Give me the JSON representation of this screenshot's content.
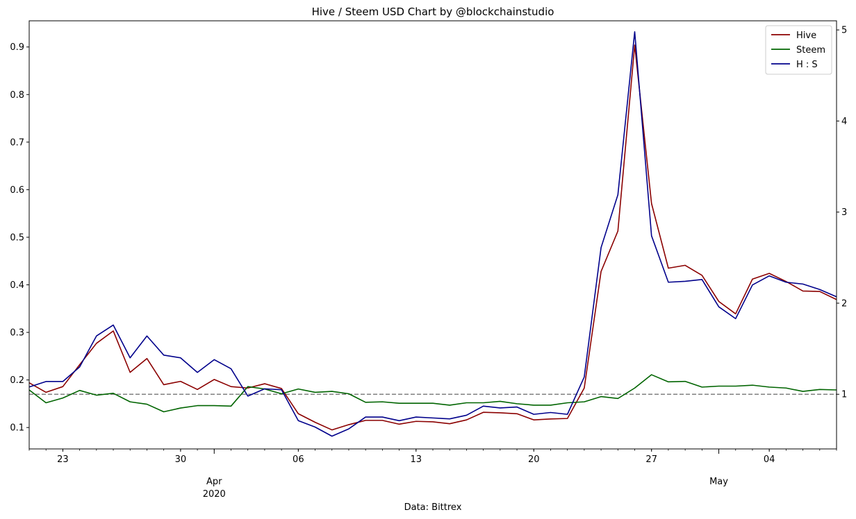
{
  "chart_data": {
    "type": "line",
    "title": "Hive / Steem USD Chart by @blockchainstudio",
    "xlabel": "Data: Bittrex",
    "x_major_labels": [
      {
        "date": "2020-04-01",
        "label": "Apr",
        "sublabel": "2020"
      },
      {
        "date": "2020-05-01",
        "label": "May",
        "sublabel": ""
      }
    ],
    "x_minor_ticks": [
      {
        "date": "2020-03-23",
        "label": "23"
      },
      {
        "date": "2020-03-30",
        "label": "30"
      },
      {
        "date": "2020-04-06",
        "label": "06"
      },
      {
        "date": "2020-04-13",
        "label": "13"
      },
      {
        "date": "2020-04-20",
        "label": "20"
      },
      {
        "date": "2020-04-27",
        "label": "27"
      },
      {
        "date": "2020-05-04",
        "label": "04"
      }
    ],
    "xlim": [
      "2020-03-21",
      "2020-05-08"
    ],
    "ylim_left": [
      0.055,
      0.955
    ],
    "yticks_left": [
      "0.1",
      "0.2",
      "0.3",
      "0.4",
      "0.5",
      "0.6",
      "0.7",
      "0.8",
      "0.9"
    ],
    "ylim_right": [
      0.4,
      5.1
    ],
    "yticks_right": [
      "1",
      "2",
      "3",
      "4",
      "5"
    ],
    "reference_line": {
      "axis": "right",
      "value": 1,
      "style": "dashed",
      "color": "#808080"
    },
    "legend": {
      "position": "top-right"
    },
    "dates": [
      "2020-03-21",
      "2020-03-22",
      "2020-03-23",
      "2020-03-24",
      "2020-03-25",
      "2020-03-26",
      "2020-03-27",
      "2020-03-28",
      "2020-03-29",
      "2020-03-30",
      "2020-03-31",
      "2020-04-01",
      "2020-04-02",
      "2020-04-03",
      "2020-04-04",
      "2020-04-05",
      "2020-04-06",
      "2020-04-07",
      "2020-04-08",
      "2020-04-09",
      "2020-04-10",
      "2020-04-11",
      "2020-04-12",
      "2020-04-13",
      "2020-04-14",
      "2020-04-15",
      "2020-04-16",
      "2020-04-17",
      "2020-04-18",
      "2020-04-19",
      "2020-04-20",
      "2020-04-21",
      "2020-04-22",
      "2020-04-23",
      "2020-04-24",
      "2020-04-25",
      "2020-04-26",
      "2020-04-27",
      "2020-04-28",
      "2020-04-29",
      "2020-04-30",
      "2020-05-01",
      "2020-05-02",
      "2020-05-03",
      "2020-05-04",
      "2020-05-05",
      "2020-05-06",
      "2020-05-07",
      "2020-05-08"
    ],
    "series": [
      {
        "name": "Hive",
        "axis": "left",
        "color": "#8b0000",
        "values": [
          0.194,
          0.174,
          0.186,
          0.232,
          0.277,
          0.303,
          0.216,
          0.245,
          0.19,
          0.197,
          0.18,
          0.201,
          0.186,
          0.183,
          0.192,
          0.182,
          0.129,
          0.111,
          0.095,
          0.106,
          0.115,
          0.115,
          0.107,
          0.113,
          0.112,
          0.108,
          0.116,
          0.132,
          0.131,
          0.129,
          0.116,
          0.118,
          0.119,
          0.183,
          0.428,
          0.513,
          0.904,
          0.571,
          0.435,
          0.441,
          0.42,
          0.365,
          0.339,
          0.412,
          0.424,
          0.407,
          0.387,
          0.386,
          0.369
        ]
      },
      {
        "name": "Steem",
        "axis": "left",
        "color": "#006400",
        "values": [
          0.179,
          0.152,
          0.162,
          0.178,
          0.168,
          0.172,
          0.154,
          0.149,
          0.133,
          0.141,
          0.146,
          0.146,
          0.145,
          0.186,
          0.181,
          0.171,
          0.181,
          0.174,
          0.176,
          0.171,
          0.153,
          0.154,
          0.151,
          0.151,
          0.151,
          0.147,
          0.152,
          0.152,
          0.155,
          0.15,
          0.147,
          0.147,
          0.152,
          0.154,
          0.165,
          0.161,
          0.183,
          0.211,
          0.196,
          0.197,
          0.185,
          0.187,
          0.187,
          0.189,
          0.185,
          0.183,
          0.176,
          0.18,
          0.179
        ]
      },
      {
        "name": "H : S",
        "axis": "right",
        "color": "#00008b",
        "values": [
          1.08,
          1.14,
          1.14,
          1.3,
          1.64,
          1.76,
          1.4,
          1.64,
          1.43,
          1.4,
          1.24,
          1.38,
          1.28,
          0.98,
          1.06,
          1.05,
          0.71,
          0.64,
          0.54,
          0.62,
          0.75,
          0.75,
          0.71,
          0.75,
          0.74,
          0.73,
          0.77,
          0.87,
          0.85,
          0.86,
          0.78,
          0.8,
          0.78,
          1.19,
          2.61,
          3.19,
          4.98,
          2.74,
          2.23,
          2.24,
          2.26,
          1.96,
          1.83,
          2.2,
          2.3,
          2.23,
          2.21,
          2.15,
          2.07
        ]
      }
    ]
  }
}
